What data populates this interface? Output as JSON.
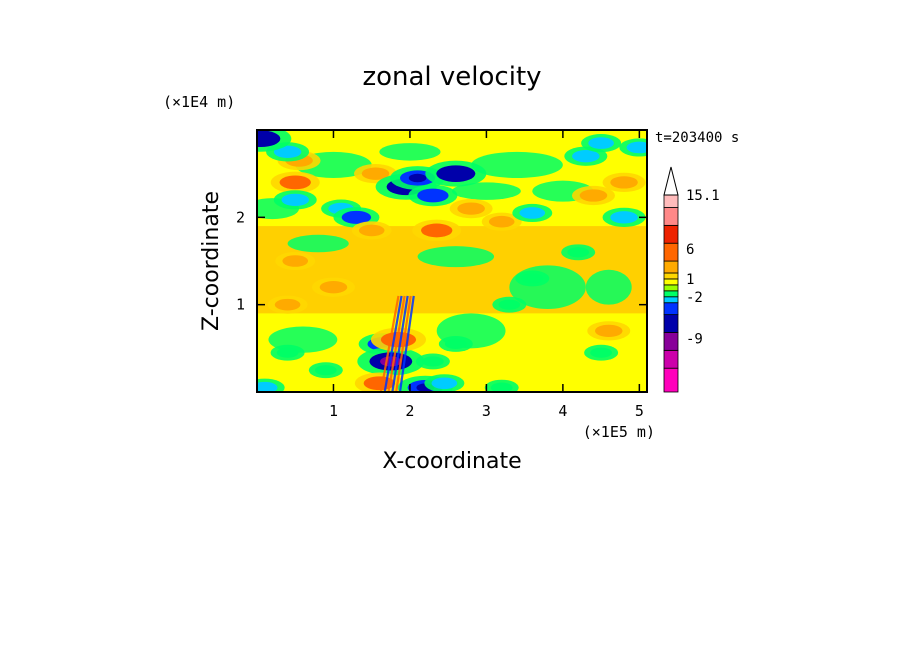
{
  "chart_data": {
    "type": "heatmap",
    "title": "zonal velocity",
    "xlabel": "X-coordinate",
    "ylabel": "Z-coordinate",
    "x_unit": "(×1E5 m)",
    "y_unit": "(×1E4 m)",
    "time_label": "t=203400 s",
    "xlim": [
      0.0,
      5.1
    ],
    "ylim": [
      0.0,
      3.0
    ],
    "x_ticks": [
      "1",
      "2",
      "3",
      "4",
      "5"
    ],
    "y_ticks": [
      "1",
      "2"
    ],
    "colorbar": {
      "labels": [
        "15.1",
        "6",
        "1",
        "-2",
        "-9"
      ],
      "label_levels": [
        15.1,
        6,
        1,
        -2,
        -9
      ],
      "bands": [
        {
          "from": -18,
          "to": -14,
          "color": "#ff00bb"
        },
        {
          "from": -14,
          "to": -11,
          "color": "#cc00aa"
        },
        {
          "from": -11,
          "to": -8,
          "color": "#880099"
        },
        {
          "from": -8,
          "to": -5,
          "color": "#0000aa"
        },
        {
          "from": -5,
          "to": -3,
          "color": "#0033ff"
        },
        {
          "from": -3,
          "to": -2,
          "color": "#00ccff"
        },
        {
          "from": -2,
          "to": -1,
          "color": "#00ff66"
        },
        {
          "from": -1,
          "to": 0,
          "color": "#99ff00"
        },
        {
          "from": 0,
          "to": 1,
          "color": "#ffff00"
        },
        {
          "from": 1,
          "to": 2,
          "color": "#ffd700"
        },
        {
          "from": 2,
          "to": 4,
          "color": "#ffaa00"
        },
        {
          "from": 4,
          "to": 7,
          "color": "#ff6600"
        },
        {
          "from": 7,
          "to": 10,
          "color": "#ee2200"
        },
        {
          "from": 10,
          "to": 13,
          "color": "#ff8888"
        },
        {
          "from": 13,
          "to": 15.1,
          "color": "#ffbbbb"
        }
      ],
      "extend_max": true
    },
    "field_regions": [
      {
        "name": "upper-layer",
        "z": [
          1.9,
          3.0
        ],
        "dominant": "mixed green/yellow/orange with blue and cyan cells"
      },
      {
        "name": "mid-layer",
        "z": [
          0.9,
          1.9
        ],
        "dominant": "yellow and orange"
      },
      {
        "name": "lower-layer",
        "z": [
          0.0,
          0.9
        ],
        "dominant": "yellow with green patches, narrow strong-gradient band near x=1.7-2.0"
      }
    ],
    "features": [
      {
        "x": 0.5,
        "z": 2.4,
        "value": 4
      },
      {
        "x": 0.55,
        "z": 2.65,
        "value": 3
      },
      {
        "x": 0.4,
        "z": 2.75,
        "value": -3
      },
      {
        "x": 0.05,
        "z": 2.9,
        "value": -6
      },
      {
        "x": 0.5,
        "z": 2.2,
        "value": -3
      },
      {
        "x": 1.1,
        "z": 2.1,
        "value": -2.5
      },
      {
        "x": 1.3,
        "z": 2.0,
        "value": -3.5
      },
      {
        "x": 1.55,
        "z": 2.5,
        "value": 3
      },
      {
        "x": 1.95,
        "z": 2.35,
        "value": -6
      },
      {
        "x": 2.1,
        "z": 2.45,
        "value": -5
      },
      {
        "x": 2.3,
        "z": 2.25,
        "value": -4
      },
      {
        "x": 2.6,
        "z": 2.5,
        "value": -6
      },
      {
        "x": 2.35,
        "z": 1.85,
        "value": 4
      },
      {
        "x": 2.8,
        "z": 2.1,
        "value": 3
      },
      {
        "x": 3.2,
        "z": 1.95,
        "value": 2.5
      },
      {
        "x": 3.6,
        "z": 2.05,
        "value": -2.5
      },
      {
        "x": 4.4,
        "z": 2.25,
        "value": 3
      },
      {
        "x": 4.8,
        "z": 2.4,
        "value": 3
      },
      {
        "x": 4.8,
        "z": 2.0,
        "value": -3
      },
      {
        "x": 4.3,
        "z": 2.7,
        "value": -3
      },
      {
        "x": 4.5,
        "z": 2.85,
        "value": -2.5
      },
      {
        "x": 5.0,
        "z": 2.8,
        "value": -2.5
      },
      {
        "x": 1.5,
        "z": 1.85,
        "value": 2.5
      },
      {
        "x": 0.5,
        "z": 1.5,
        "value": 2.5
      },
      {
        "x": 1.0,
        "z": 1.2,
        "value": 3
      },
      {
        "x": 0.4,
        "z": 1.0,
        "value": 2.5
      },
      {
        "x": 3.6,
        "z": 1.3,
        "value": -1.5
      },
      {
        "x": 3.3,
        "z": 1.0,
        "value": -1.5
      },
      {
        "x": 4.2,
        "z": 1.6,
        "value": -1.5
      },
      {
        "x": 2.6,
        "z": 0.55,
        "value": -1.5
      },
      {
        "x": 2.3,
        "z": 0.35,
        "value": -1.5
      },
      {
        "x": 0.4,
        "z": 0.45,
        "value": -1.5
      },
      {
        "x": 0.9,
        "z": 0.25,
        "value": -1.5
      },
      {
        "x": 4.5,
        "z": 0.45,
        "value": -1.5
      },
      {
        "x": 4.6,
        "z": 0.7,
        "value": 3
      },
      {
        "x": 1.65,
        "z": 0.55,
        "value": -4
      },
      {
        "x": 1.75,
        "z": 0.35,
        "value": -7
      },
      {
        "x": 1.85,
        "z": 0.6,
        "value": 5
      },
      {
        "x": 1.6,
        "z": 0.1,
        "value": 4
      },
      {
        "x": 2.2,
        "z": 0.05,
        "value": -5
      },
      {
        "x": 2.45,
        "z": 0.1,
        "value": -2.5
      },
      {
        "x": 3.2,
        "z": 0.05,
        "value": -1.5
      },
      {
        "x": 0.1,
        "z": 0.05,
        "value": -2.5
      }
    ]
  }
}
